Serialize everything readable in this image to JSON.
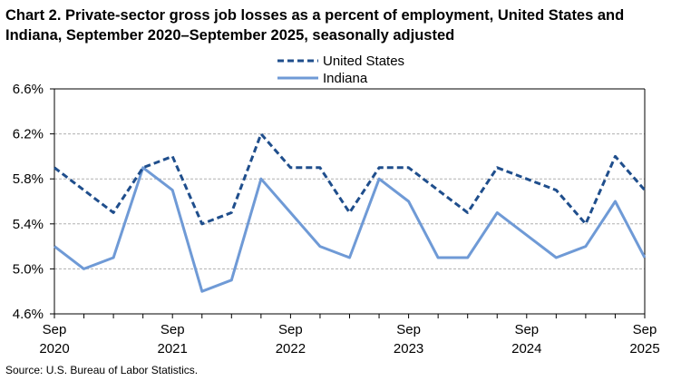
{
  "title": "Chart 2. Private-sector gross job losses as a percent of employment, United States and Indiana, September 2020–September 2025, seasonally adjusted",
  "source": "Source: U.S. Bureau of Labor Statistics.",
  "chart_data": {
    "type": "line",
    "x": [
      "Sep 2020",
      "Dec 2020",
      "Mar 2021",
      "Jun 2021",
      "Sep 2021",
      "Dec 2021",
      "Mar 2022",
      "Jun 2022",
      "Sep 2022",
      "Dec 2022",
      "Mar 2023",
      "Jun 2023",
      "Sep 2023",
      "Dec 2023",
      "Mar 2024",
      "Jun 2024",
      "Sep 2024",
      "Dec 2024",
      "Mar 2025",
      "Jun 2025",
      "Sep 2025"
    ],
    "x_tick_labels": [
      {
        "month": "Sep",
        "year": "2020"
      },
      {
        "month": "Sep",
        "year": "2021"
      },
      {
        "month": "Sep",
        "year": "2022"
      },
      {
        "month": "Sep",
        "year": "2023"
      },
      {
        "month": "Sep",
        "year": "2024"
      },
      {
        "month": "Sep",
        "year": "2025"
      }
    ],
    "y_tick_labels": [
      "4.6%",
      "5.0%",
      "5.4%",
      "5.8%",
      "6.2%",
      "6.6%"
    ],
    "y_ticks": [
      4.6,
      5.0,
      5.4,
      5.8,
      6.2,
      6.6
    ],
    "ylim": [
      4.6,
      6.6
    ],
    "grid": true,
    "legend_position": "top-center",
    "series": [
      {
        "name": "United States",
        "style": "dashed",
        "color": "#1f4e8c",
        "values": [
          5.9,
          5.7,
          5.5,
          5.9,
          6.0,
          5.4,
          5.5,
          6.2,
          5.9,
          5.9,
          5.5,
          5.9,
          5.9,
          5.7,
          5.5,
          5.9,
          5.8,
          5.7,
          5.4,
          6.0,
          5.7
        ]
      },
      {
        "name": "Indiana",
        "style": "solid",
        "color": "#6f9ad6",
        "values": [
          5.2,
          5.0,
          5.1,
          5.9,
          5.7,
          4.8,
          4.9,
          5.8,
          5.5,
          5.2,
          5.1,
          5.8,
          5.6,
          5.1,
          5.1,
          5.5,
          5.3,
          5.1,
          5.2,
          5.6,
          5.1
        ]
      }
    ]
  }
}
